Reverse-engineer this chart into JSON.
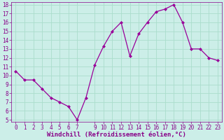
{
  "x": [
    0,
    1,
    2,
    3,
    4,
    5,
    6,
    7,
    8,
    9,
    10,
    11,
    12,
    13,
    14,
    15,
    16,
    17,
    18,
    19,
    20,
    21,
    22,
    23
  ],
  "y": [
    10.5,
    9.5,
    9.5,
    8.5,
    7.5,
    7.0,
    6.5,
    5.0,
    7.5,
    11.2,
    13.3,
    15.0,
    16.0,
    12.2,
    14.7,
    16.0,
    17.2,
    17.5,
    18.0,
    16.0,
    13.0,
    13.0,
    12.0,
    11.7
  ],
  "line_color": "#990099",
  "marker": "D",
  "marker_size": 2.0,
  "bg_color": "#cceee8",
  "grid_color": "#aaddcc",
  "xlabel": "Windchill (Refroidissement éolien,°C)",
  "xlabel_color": "#880088",
  "ylim": [
    5,
    18
  ],
  "xlim": [
    -0.5,
    23.5
  ],
  "yticks": [
    5,
    6,
    7,
    8,
    9,
    10,
    11,
    12,
    13,
    14,
    15,
    16,
    17,
    18
  ],
  "xticks": [
    0,
    1,
    2,
    3,
    4,
    5,
    6,
    7,
    9,
    10,
    11,
    12,
    13,
    14,
    15,
    16,
    17,
    18,
    19,
    20,
    21,
    22,
    23
  ],
  "tick_color": "#880088",
  "tick_label_size": 5.5,
  "xlabel_size": 6.5
}
